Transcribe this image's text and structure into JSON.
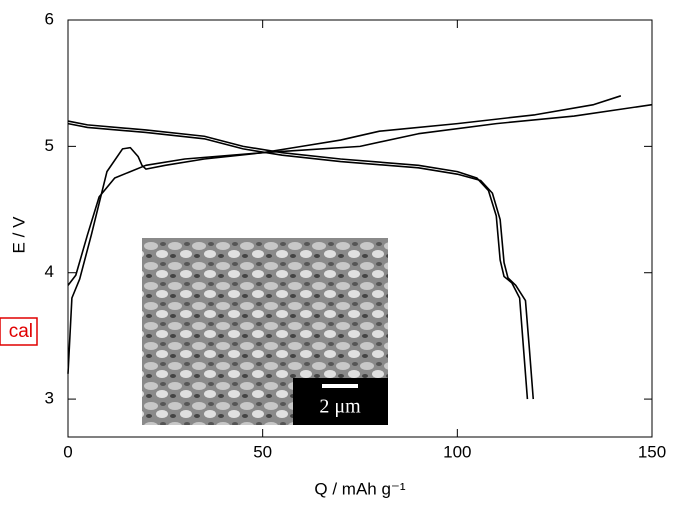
{
  "chart_data": {
    "type": "line",
    "xlabel": "Q  /  mAh g⁻¹",
    "ylabel": "E  /  V",
    "annotation": "cal",
    "inset_scale": "2 μm",
    "xlim": [
      0,
      150
    ],
    "ylim": [
      2.7,
      6
    ],
    "xticks": [
      0,
      50,
      100,
      150
    ],
    "yticks": [
      3,
      4,
      5,
      6
    ],
    "series": [
      {
        "color": "#000000",
        "x": [
          0,
          1,
          3,
          6,
          10,
          14,
          16,
          18,
          19,
          20,
          25,
          35,
          50,
          60,
          75,
          90,
          110,
          130,
          150
        ],
        "values": [
          3.2,
          3.8,
          3.95,
          4.3,
          4.8,
          4.98,
          4.99,
          4.92,
          4.85,
          4.82,
          4.85,
          4.9,
          4.95,
          4.97,
          5.0,
          5.1,
          5.18,
          5.24,
          5.33
        ]
      },
      {
        "color": "#000000",
        "x": [
          0,
          2,
          5,
          8,
          12,
          20,
          30,
          50,
          60,
          70,
          80,
          100,
          120,
          135,
          142
        ],
        "values": [
          3.9,
          3.98,
          4.3,
          4.6,
          4.75,
          4.85,
          4.9,
          4.95,
          5.0,
          5.05,
          5.12,
          5.18,
          5.25,
          5.33,
          5.4
        ]
      },
      {
        "color": "#000000",
        "x": [
          0,
          5,
          20,
          35,
          45,
          55,
          70,
          90,
          100,
          105,
          108,
          110,
          111,
          112,
          114,
          116,
          117,
          118
        ],
        "values": [
          5.2,
          5.17,
          5.13,
          5.08,
          5.0,
          4.95,
          4.9,
          4.85,
          4.8,
          4.75,
          4.65,
          4.45,
          4.1,
          3.97,
          3.92,
          3.8,
          3.4,
          3.0
        ]
      },
      {
        "color": "#000000",
        "x": [
          0,
          5,
          20,
          35,
          45,
          55,
          70,
          90,
          100,
          106,
          109,
          111,
          112,
          113,
          115,
          117.5,
          118.5,
          119.5
        ],
        "values": [
          5.18,
          5.15,
          5.11,
          5.06,
          4.98,
          4.93,
          4.88,
          4.83,
          4.78,
          4.73,
          4.63,
          4.42,
          4.08,
          3.96,
          3.9,
          3.78,
          3.4,
          3.0
        ]
      }
    ]
  }
}
